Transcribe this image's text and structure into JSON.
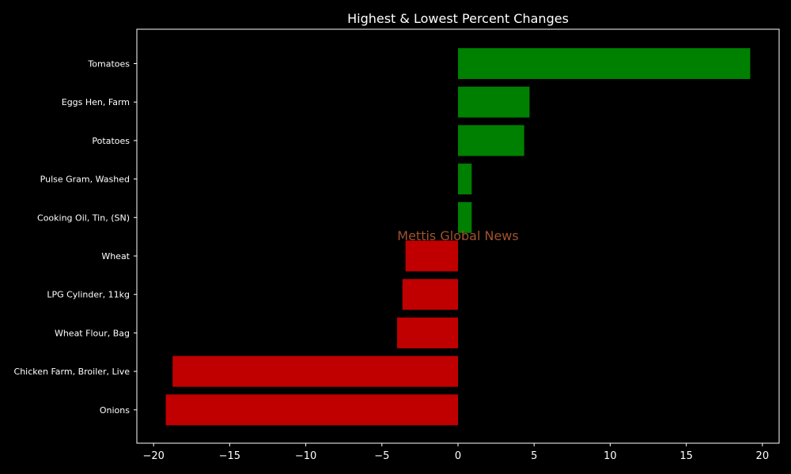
{
  "chart_data": {
    "type": "bar",
    "orientation": "horizontal",
    "title": "Highest & Lowest Percent Changes",
    "xlabel": "",
    "ylabel": "",
    "categories": [
      "Tomatoes",
      "Eggs Hen, Farm",
      "Potatoes",
      "Pulse Gram, Washed",
      "Cooking Oil, Tin, (SN)",
      "Wheat",
      "LPG Cylinder, 11kg",
      "Wheat Flour, Bag",
      "Chicken Farm, Broiler, Live",
      "Onions"
    ],
    "values": [
      19.2,
      4.7,
      4.35,
      0.9,
      0.9,
      -3.45,
      -3.65,
      -4.0,
      -18.75,
      -19.2
    ],
    "xlim": [
      -21.1,
      21.1
    ],
    "xticks": [
      -20,
      -15,
      -10,
      -5,
      0,
      5,
      10,
      15,
      20
    ],
    "xtick_labels": [
      "−20",
      "−15",
      "−10",
      "−5",
      "0",
      "5",
      "10",
      "15",
      "20"
    ],
    "grid": false,
    "colors": {
      "positive": "#008000",
      "negative": "#c00000",
      "background": "#000000",
      "axes": "#ffffff",
      "watermark": "#a0522d"
    },
    "watermark": "Mettis Global News"
  }
}
